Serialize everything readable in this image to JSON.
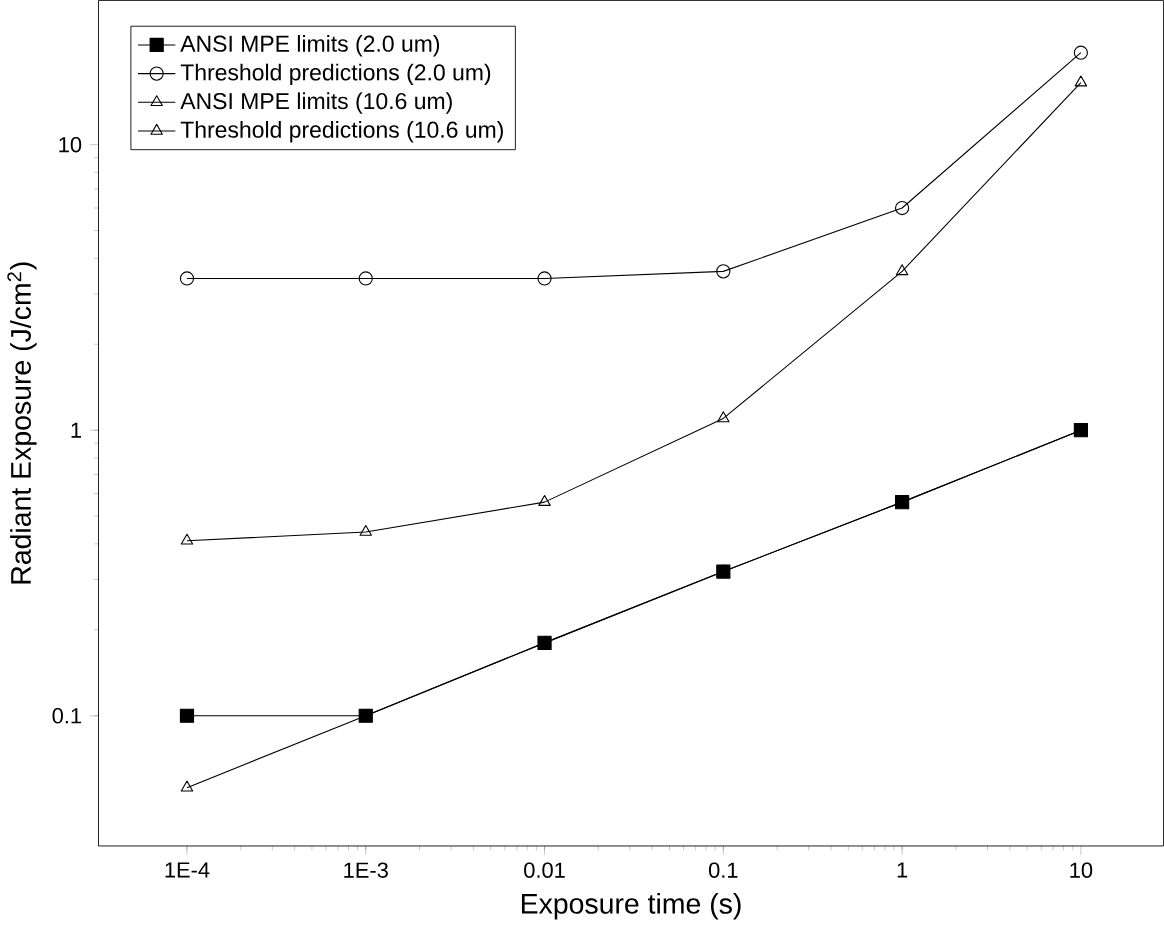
{
  "chart_data": {
    "type": "line",
    "xlabel": "Exposure time (s)",
    "ylabel": "Radiant Exposure (J/cm$^{2}$)",
    "log": "xy",
    "xlim": [
      3.2e-05,
      29
    ],
    "ylim": [
      0.035,
      32
    ],
    "xticks": [
      {
        "value": 0.0001,
        "label": "1E-4"
      },
      {
        "value": 0.001,
        "label": "1E-3"
      },
      0.01,
      0.1,
      1,
      10
    ],
    "yticks": [
      0.1,
      1,
      10
    ],
    "legend": "top left",
    "series": [
      {
        "name": "ANSI MPE limits (2.0 um)",
        "color": "#000000",
        "marker": "square",
        "x": [
          0.0001,
          0.001,
          0.01,
          0.1,
          1,
          10
        ],
        "values": [
          0.1,
          0.1,
          0.18,
          0.32,
          0.56,
          1.0
        ]
      },
      {
        "name": "Threshold predictions (2.0 um)",
        "color": "#000000",
        "marker": "circle",
        "x": [
          0.0001,
          0.001,
          0.01,
          0.1,
          1,
          10
        ],
        "values": [
          3.4,
          3.4,
          3.4,
          3.6,
          6.0,
          21
        ]
      },
      {
        "name": "ANSI MPE limits (10.6 um)",
        "color": "#000000",
        "marker": "triangle",
        "x": [
          0.0001,
          0.001,
          0.01,
          0.1,
          1,
          10
        ],
        "values": [
          0.056,
          0.1,
          0.18,
          0.32,
          0.56,
          1.0
        ]
      },
      {
        "name": "Threshold predictions (10.6 um)",
        "color": "#000000",
        "marker": "triangle down",
        "x": [
          0.0001,
          0.001,
          0.01,
          0.1,
          1,
          10
        ],
        "values": [
          0.41,
          0.44,
          0.56,
          1.1,
          3.6,
          16.5
        ]
      }
    ]
  }
}
